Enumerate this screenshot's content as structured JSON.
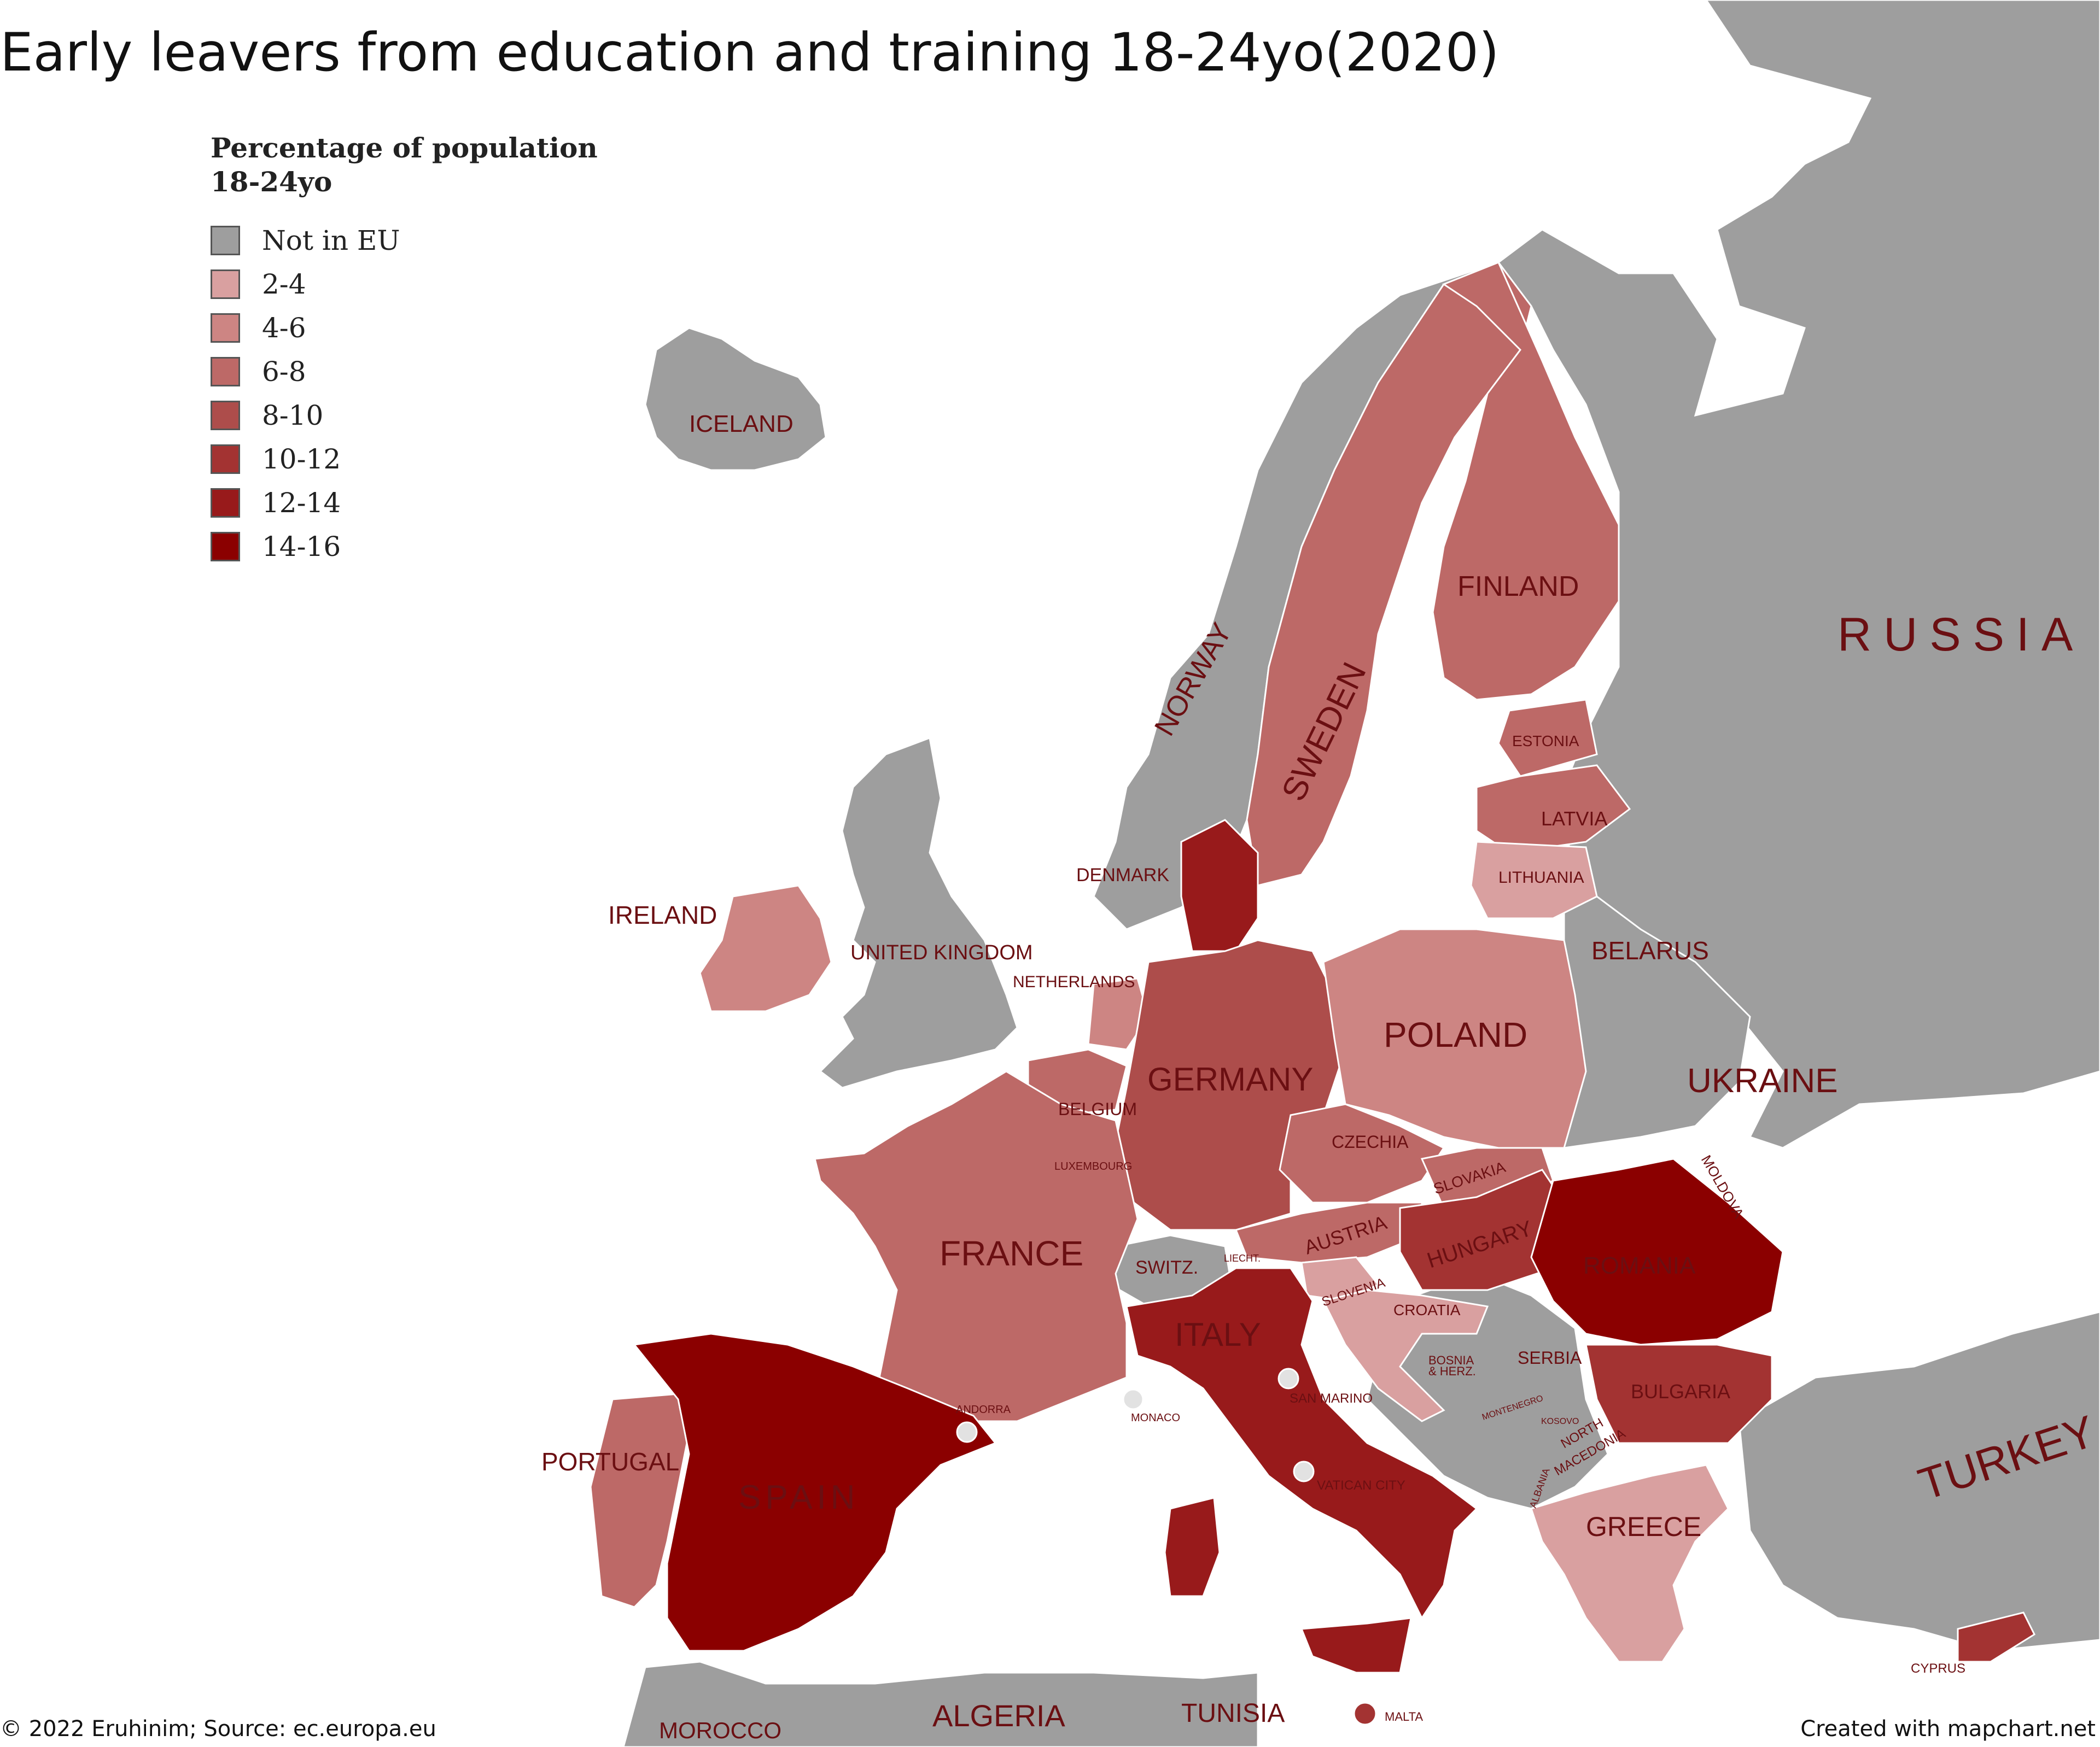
{
  "title": "Early leavers from education and training 18-24yo(2020)",
  "legend": {
    "title_line1": "Percentage of population",
    "title_line2": "18-24yo",
    "items": [
      {
        "label": "Not in EU",
        "color": "#9e9e9e"
      },
      {
        "label": "2-4",
        "color": "#d9a0a0"
      },
      {
        "label": "4-6",
        "color": "#cd8583"
      },
      {
        "label": "6-8",
        "color": "#bd6967"
      },
      {
        "label": "8-10",
        "color": "#ad4d4b"
      },
      {
        "label": "10-12",
        "color": "#a33332"
      },
      {
        "label": "12-14",
        "color": "#981a1b"
      },
      {
        "label": "14-16",
        "color": "#8b0000"
      }
    ]
  },
  "countries": {
    "iceland": "ICELAND",
    "norway": "NORWAY",
    "sweden": "SWEDEN",
    "finland": "FINLAND",
    "russia": "RUSSIA",
    "estonia": "ESTONIA",
    "latvia": "LATVIA",
    "lithuania": "LITHUANIA",
    "belarus": "BELARUS",
    "denmark": "DENMARK",
    "ireland": "IRELAND",
    "uk": "UNITED KINGDOM",
    "netherlands": "NETHERLANDS",
    "poland": "POLAND",
    "germany": "GERMANY",
    "belgium": "BELGIUM",
    "ukraine": "UKRAINE",
    "czechia": "CZECHIA",
    "luxembourg": "LUXEMBOURG",
    "moldova": "MOLDOVA",
    "slovakia": "SLOVAKIA",
    "austria": "AUSTRIA",
    "hungary": "HUNGARY",
    "france": "FRANCE",
    "switz": "SWITZ.",
    "liecht": "LIECHT.",
    "romania": "ROMANIA",
    "slovenia": "SLOVENIA",
    "croatia": "CROATIA",
    "italy": "ITALY",
    "bosnia1": "BOSNIA",
    "bosnia2": "& HERZ.",
    "serbia": "SERBIA",
    "san_marino": "SAN MARINO",
    "montenegro": "MONTENEGRO",
    "kosovo": "KOSOVO",
    "bulgaria": "BULGARIA",
    "andorra": "ANDORRA",
    "monaco": "MONACO",
    "north_macedonia1": "NORTH",
    "north_macedonia2": "MACEDONIA",
    "albania": "ALBANIA",
    "portugal": "PORTUGAL",
    "spain": "SPAIN",
    "vatican": "VATICAN CITY",
    "greece": "GREECE",
    "turkey": "TURKEY",
    "cyprus": "CYPRUS",
    "malta": "MALTA",
    "tunisia": "TUNISIA",
    "algeria": "ALGERIA",
    "morocco": "MOROCCO"
  },
  "footer": {
    "left": "© 2022 Eruhinim; Source: ec.europa.eu",
    "right": "Created with mapchart.net"
  }
}
